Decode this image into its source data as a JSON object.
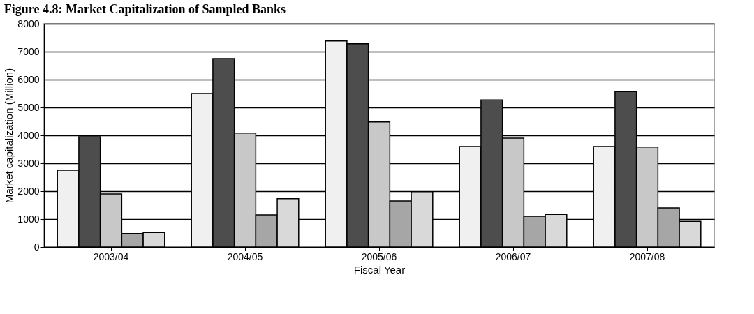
{
  "chart_data": {
    "type": "bar",
    "title": "Figure 4.8: Market Capitalization of Sampled Banks",
    "xlabel": "Fiscal Year",
    "ylabel": "Market capitalization (Million)",
    "categories": [
      "2003/04",
      "2004/05",
      "2005/06",
      "2006/07",
      "2007/08"
    ],
    "series": [
      {
        "color": "#f0f0f0",
        "values": [
          2750,
          5500,
          7380,
          3600,
          3600
        ]
      },
      {
        "color": "#4d4d4d",
        "values": [
          3950,
          6750,
          7280,
          5270,
          5570
        ]
      },
      {
        "color": "#c8c8c8",
        "values": [
          1900,
          4080,
          4480,
          3900,
          3580
        ]
      },
      {
        "color": "#a6a6a6",
        "values": [
          480,
          1150,
          1650,
          1100,
          1400
        ]
      },
      {
        "color": "#d9d9d9",
        "values": [
          520,
          1730,
          1980,
          1170,
          920
        ]
      }
    ],
    "ylim": [
      0,
      8000
    ],
    "yticks": [
      0,
      1000,
      2000,
      3000,
      4000,
      5000,
      6000,
      7000,
      8000
    ],
    "grid": "y",
    "legend": false
  }
}
